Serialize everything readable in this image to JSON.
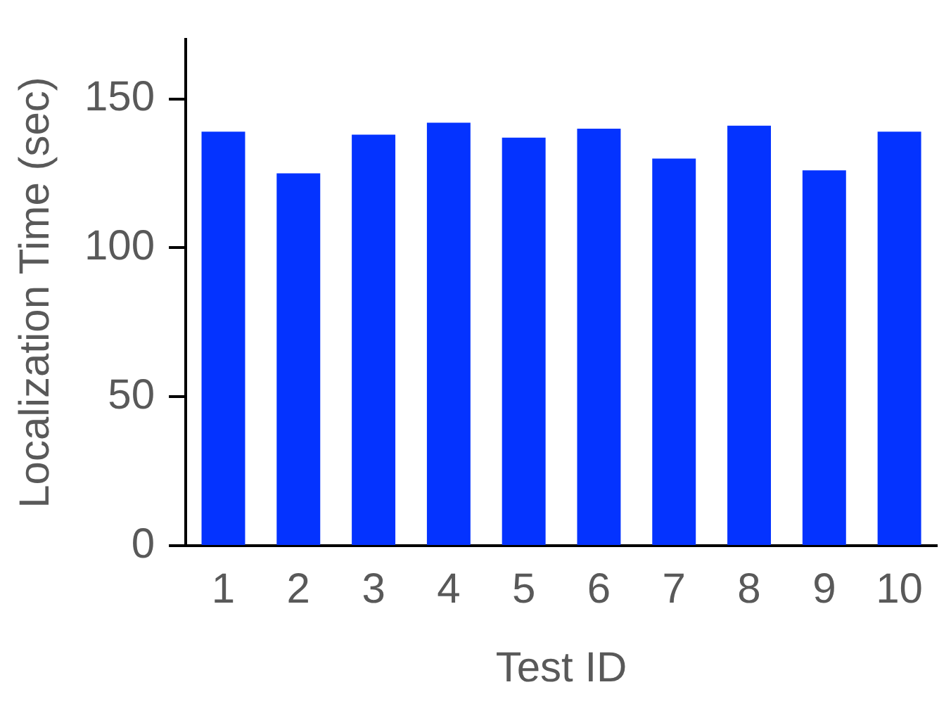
{
  "chart_data": {
    "type": "bar",
    "xlabel": "Test ID",
    "ylabel": "Localization Time (sec)",
    "categories": [
      "1",
      "2",
      "3",
      "4",
      "5",
      "6",
      "7",
      "8",
      "9",
      "10"
    ],
    "values": [
      139,
      125,
      138,
      142,
      137,
      140,
      130,
      141,
      126,
      139
    ],
    "color": "#0433ff",
    "ylim": [
      0,
      170
    ],
    "yticks": [
      0,
      50,
      100,
      150
    ],
    "grid": false,
    "legend": false
  }
}
